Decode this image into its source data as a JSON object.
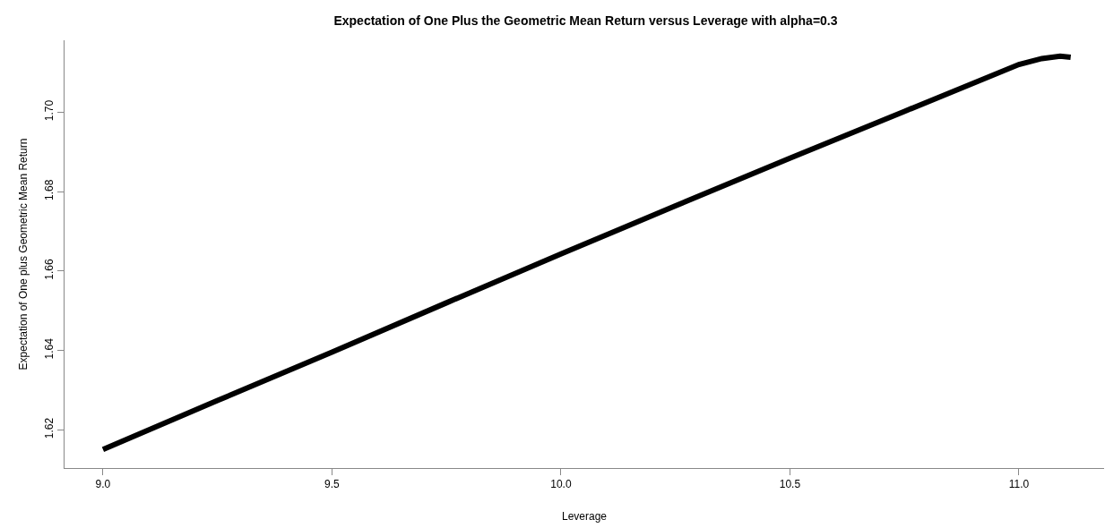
{
  "chart_data": {
    "type": "line",
    "title": "Expectation of One Plus the Geometric Mean Return versus Leverage with alpha=0.3",
    "xlabel": "Leverage",
    "ylabel": "Expectation of One plus Geometric Mean Return",
    "x": [
      9.0,
      9.25,
      9.5,
      9.75,
      10.0,
      10.25,
      10.5,
      10.75,
      11.0,
      11.05,
      11.09,
      11.113
    ],
    "series": [
      {
        "color": "#000000",
        "values": [
          1.6151,
          1.6274,
          1.6396,
          1.652,
          1.6643,
          1.6764,
          1.6884,
          1.7002,
          1.712,
          1.7135,
          1.7141,
          1.7138
        ]
      }
    ],
    "xlim": [
      8.916,
      11.186
    ],
    "ylim": [
      1.6104,
      1.7181
    ],
    "xticks": [
      {
        "value": 9.0,
        "label": "9.0"
      },
      9.5,
      {
        "value": 10.0,
        "label": "10.0"
      },
      10.5,
      {
        "value": 11.0,
        "label": "11.0"
      }
    ],
    "yticks": [
      1.62,
      1.64,
      1.66,
      1.68,
      {
        "value": 1.7,
        "label": "1.70"
      }
    ],
    "line_style": "solid"
  }
}
